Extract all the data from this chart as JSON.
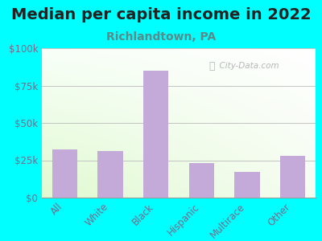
{
  "title": "Median per capita income in 2022",
  "subtitle": "Richlandtown, PA",
  "categories": [
    "All",
    "White",
    "Black",
    "Hispanic",
    "Multirace",
    "Other"
  ],
  "values": [
    32000,
    31000,
    85000,
    23000,
    17000,
    28000
  ],
  "bar_color": "#c4aad8",
  "background_color": "#00FFFF",
  "title_color": "#222222",
  "subtitle_color": "#5a8a8a",
  "axis_label_color": "#7a6a8a",
  "grid_color": "#bbbbbb",
  "ylim": [
    0,
    100000
  ],
  "yticks": [
    0,
    25000,
    50000,
    75000,
    100000
  ],
  "ytick_labels": [
    "$0",
    "$25k",
    "$50k",
    "$75k",
    "$100k"
  ],
  "watermark": "City-Data.com",
  "title_fontsize": 14,
  "subtitle_fontsize": 10,
  "tick_fontsize": 8.5
}
